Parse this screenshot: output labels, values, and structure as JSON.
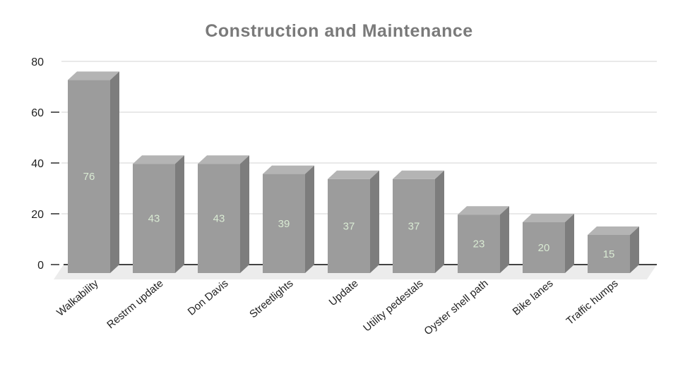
{
  "chart_data": {
    "type": "bar",
    "style": "3d-column",
    "title": "Construction and Maintenance",
    "categories": [
      "Walkability",
      "Restrm update",
      "Don Davis",
      "Streetlights",
      "Update",
      "Utility pedestals",
      "Oyster shell path",
      "Bike lanes",
      "Traffic humps"
    ],
    "values": [
      76,
      43,
      43,
      39,
      37,
      37,
      23,
      20,
      15
    ],
    "xlabel": "",
    "ylabel": "",
    "ylim": [
      0,
      80
    ],
    "yticks": [
      0,
      20,
      40,
      60,
      80
    ],
    "grid": true,
    "legend": "none",
    "colors": {
      "bar_front": "#9c9c9c",
      "bar_top": "#b4b4b4",
      "bar_side": "#7d7d7d",
      "value_label": "#d9ead3",
      "title": "#7a7a7a",
      "axis_text": "#1f1f1f",
      "gridline": "#e2e2e2",
      "baseline": "#424242",
      "tick": "#5f5f5f",
      "floor": "#ececec",
      "background": "#ffffff"
    }
  }
}
